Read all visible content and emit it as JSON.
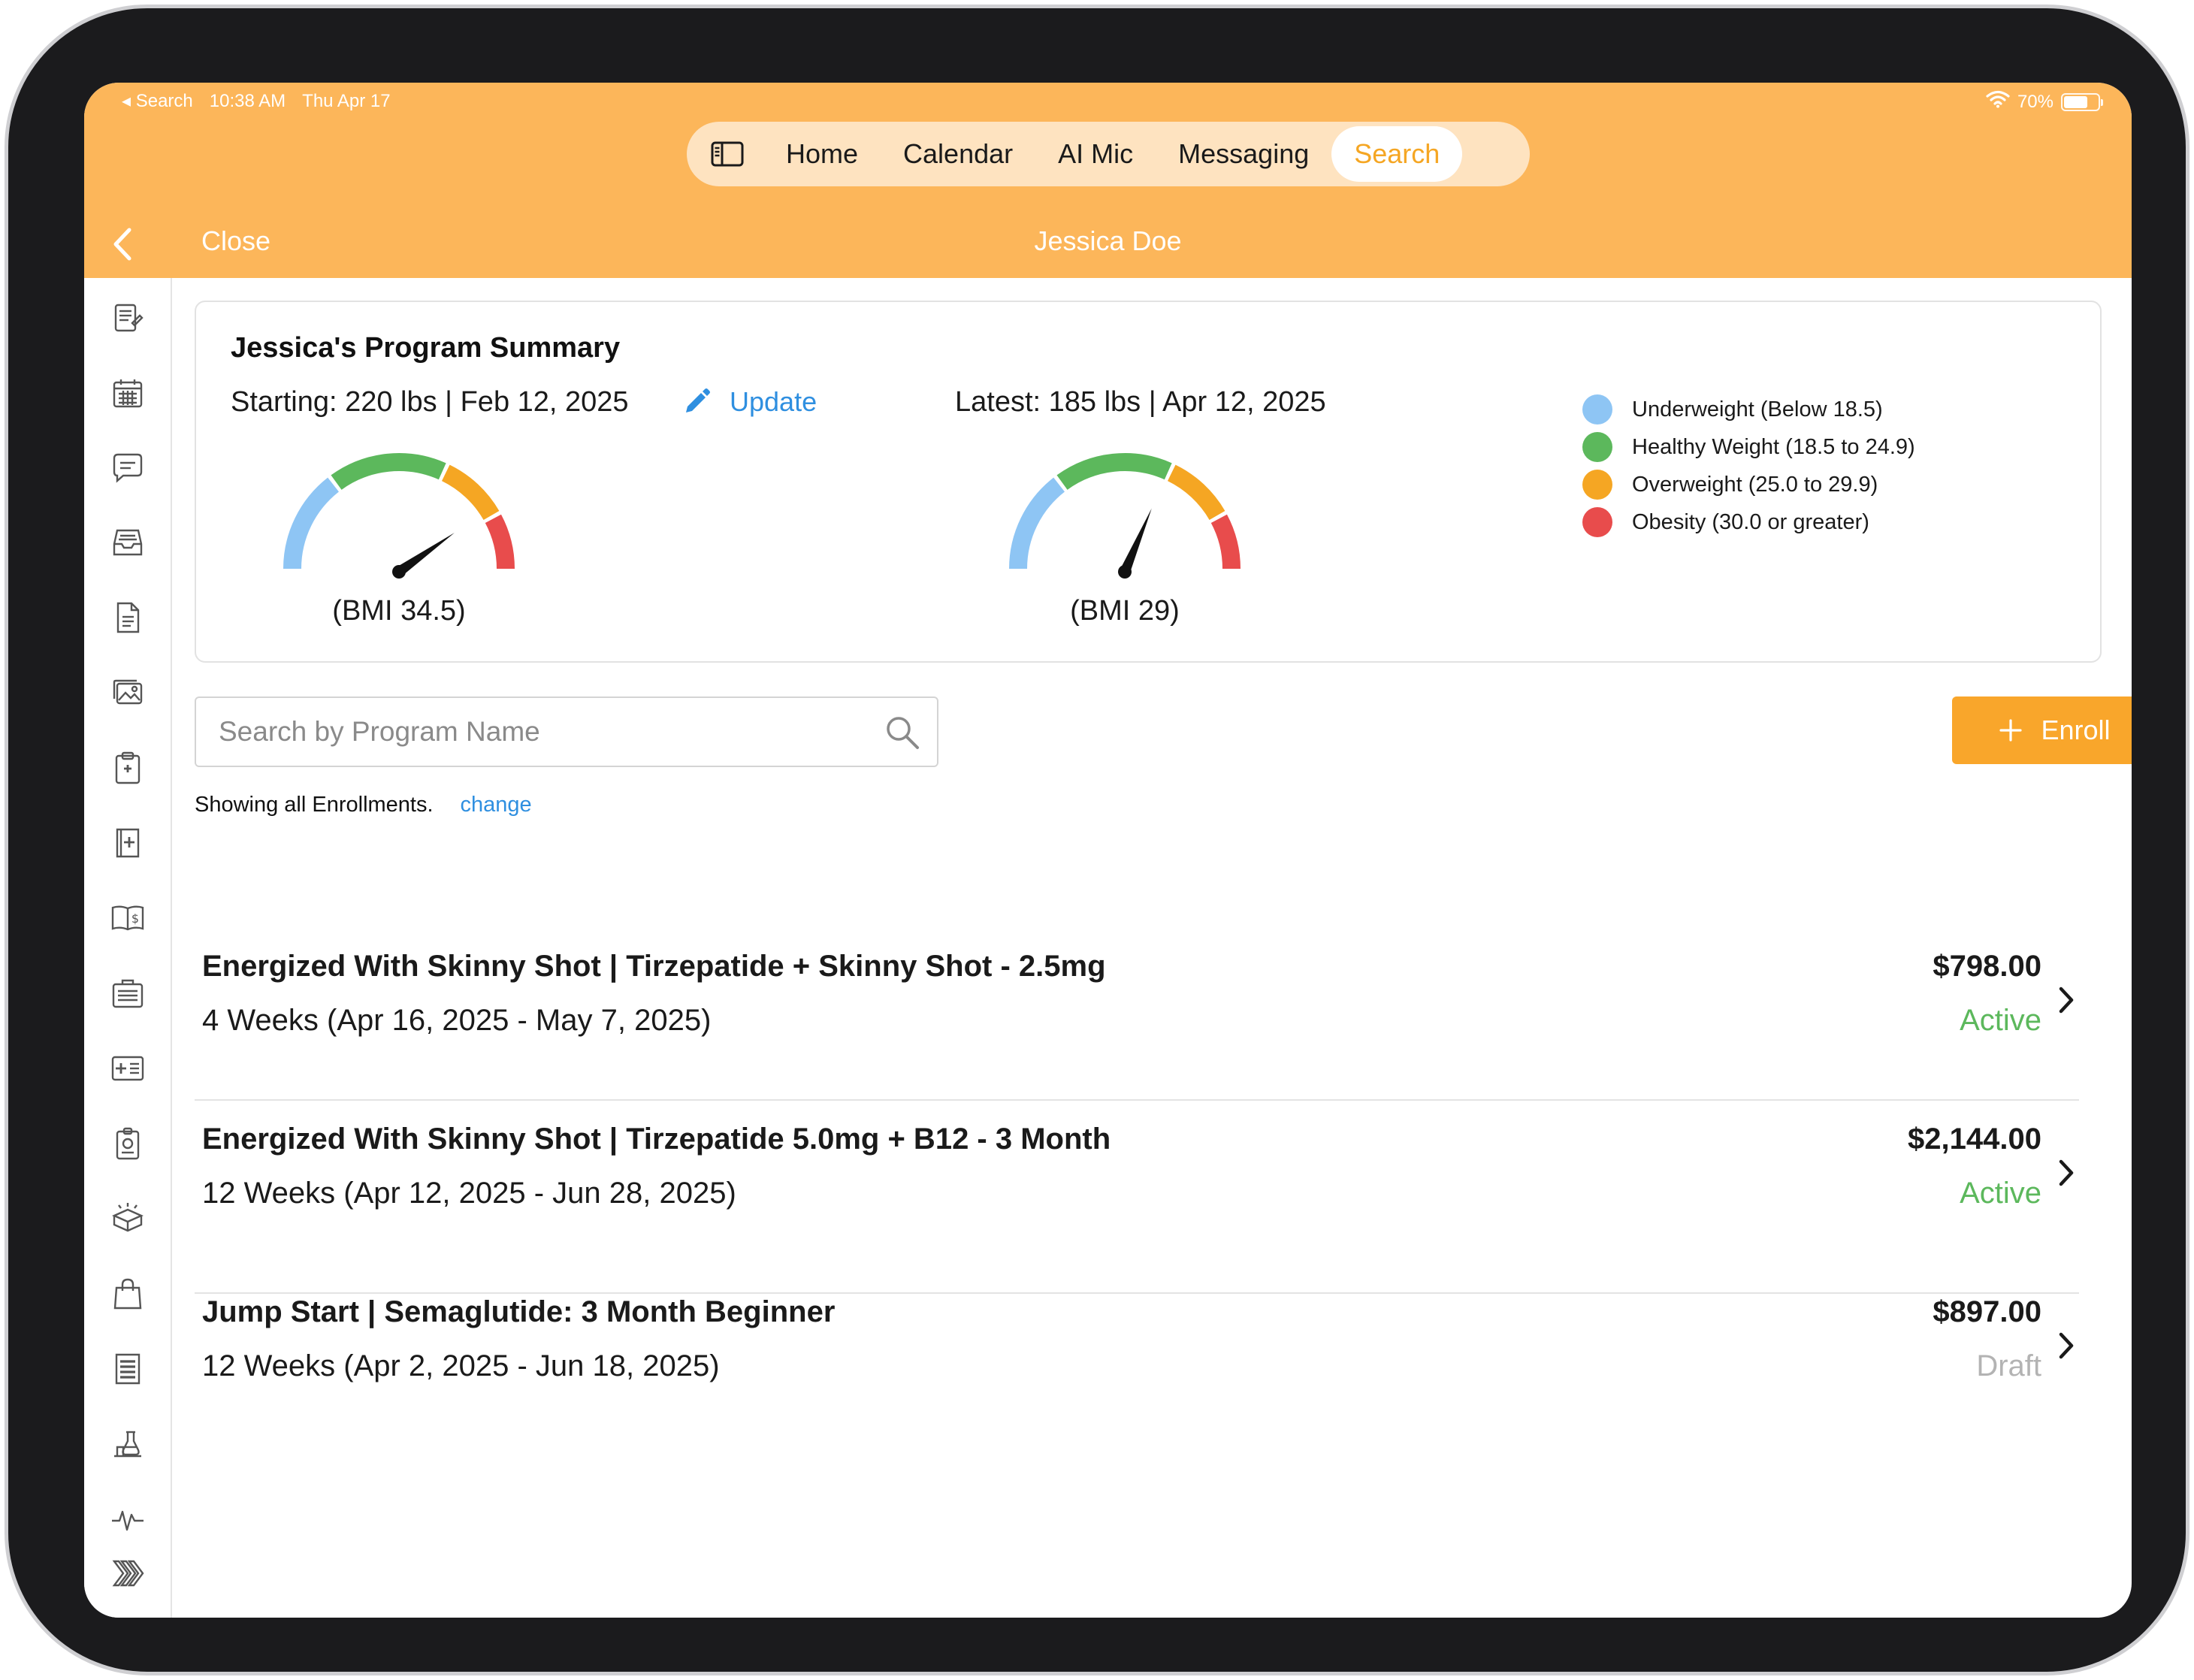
{
  "status_bar": {
    "back_app": "◂ Search",
    "time": "10:38 AM",
    "date": "Thu Apr 17",
    "wifi_icon": "wifi-icon",
    "battery": "70%",
    "battery_level": 0.7
  },
  "tabs": {
    "sidebar_toggle_icon": "sidebar-toggle-icon",
    "items": [
      {
        "label": "Home"
      },
      {
        "label": "Calendar"
      },
      {
        "label": "AI Mic"
      },
      {
        "label": "Messaging"
      },
      {
        "label": "Search",
        "active": true
      }
    ]
  },
  "nav": {
    "back_icon": "chevron-left-icon",
    "close_label": "Close",
    "title": "Jessica Doe"
  },
  "sidebar": {
    "icons": [
      "notes-icon",
      "calendar-icon",
      "chat-icon",
      "inbox-icon",
      "document-icon",
      "images-icon",
      "clipboard-icon",
      "medical-book-icon",
      "billing-book-icon",
      "briefcase-icon",
      "medical-id-icon",
      "badge-icon",
      "package-icon",
      "shopping-bag-icon",
      "receipt-icon",
      "lab-icon",
      "vitals-icon",
      "more-chevrons-icon"
    ]
  },
  "summary": {
    "title": "Jessica's Program Summary",
    "starting_label": "Starting: 220 lbs | Feb 12, 2025",
    "update_label": "Update",
    "latest_label": "Latest: 185 lbs | Apr 12, 2025",
    "starting_bmi": 34.5,
    "starting_bmi_label": "(BMI 34.5)",
    "latest_bmi": 29,
    "latest_bmi_label": "(BMI 29)",
    "legend": [
      {
        "label": "Underweight (Below 18.5)",
        "color": "#8ec5f4"
      },
      {
        "label": "Healthy Weight (18.5 to 24.9)",
        "color": "#5cb85c"
      },
      {
        "label": "Overweight (25.0 to 29.9)",
        "color": "#f5a623"
      },
      {
        "label": "Obesity (30.0 or greater)",
        "color": "#e84c4c"
      }
    ]
  },
  "search": {
    "placeholder": "Search by Program Name",
    "value": ""
  },
  "enroll_button": {
    "label": "Enroll"
  },
  "filter": {
    "text": "Showing all Enrollments.",
    "change_label": "change"
  },
  "enrollments": [
    {
      "name": "Energized With Skinny Shot | Tirzepatide + Skinny Shot - 2.5mg",
      "dates": "4 Weeks (Apr 16, 2025 - May 7, 2025)",
      "price": "$798.00",
      "status": "Active",
      "status_color": "#5cb85c"
    },
    {
      "name": "Energized With Skinny Shot | Tirzepatide 5.0mg + B12 - 3 Month",
      "dates": "12 Weeks (Apr 12, 2025 - Jun 28, 2025)",
      "price": "$2,144.00",
      "status": "Active",
      "status_color": "#5cb85c"
    },
    {
      "name": "Jump Start | Semaglutide: 3 Month Beginner",
      "dates": "12 Weeks (Apr 2, 2025 - Jun 18, 2025)",
      "price": "$897.00",
      "status": "Draft",
      "status_color": "#b3b3b3"
    }
  ]
}
